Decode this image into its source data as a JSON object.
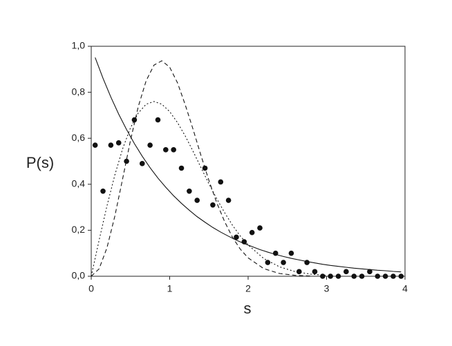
{
  "chart_data": {
    "type": "scatter",
    "x_label": "s",
    "y_label": "P(s)",
    "xlim": [
      0,
      4
    ],
    "ylim": [
      0,
      1
    ],
    "xticks": [
      0,
      1,
      2,
      3,
      4
    ],
    "yticks": [
      {
        "value": 0,
        "label": "0,0"
      },
      {
        "value": 0.2,
        "label": "0,2"
      },
      {
        "value": 0.4,
        "label": "0,4"
      },
      {
        "value": 0.6,
        "label": "0,6"
      },
      {
        "value": 0.8,
        "label": "0,8"
      },
      {
        "value": 1,
        "label": "1,0"
      }
    ],
    "series": [
      {
        "style": "dots",
        "color": "#111111",
        "x": [
          0.05,
          0.15,
          0.25,
          0.35,
          0.45,
          0.55,
          0.65,
          0.75,
          0.85,
          0.95,
          1.05,
          1.15,
          1.25,
          1.35,
          1.45,
          1.55,
          1.65,
          1.75,
          1.85,
          1.95,
          2.05,
          2.15,
          2.25,
          2.35,
          2.45,
          2.55,
          2.65,
          2.75,
          2.85,
          2.95,
          3.05,
          3.15,
          3.25,
          3.35,
          3.45,
          3.55,
          3.65,
          3.75,
          3.85,
          3.95
        ],
        "values": [
          0.57,
          0.37,
          0.57,
          0.58,
          0.5,
          0.68,
          0.49,
          0.57,
          0.68,
          0.55,
          0.55,
          0.47,
          0.37,
          0.33,
          0.47,
          0.31,
          0.41,
          0.33,
          0.17,
          0.15,
          0.19,
          0.21,
          0.06,
          0.1,
          0.06,
          0.1,
          0.02,
          0.06,
          0.02,
          0,
          0,
          0,
          0.02,
          0,
          0,
          0.02,
          0,
          0,
          0,
          0
        ]
      },
      {
        "style": "solid",
        "color": "#111111",
        "x": [
          0.05,
          0.15,
          0.25,
          0.35,
          0.45,
          0.55,
          0.65,
          0.75,
          0.85,
          0.95,
          1.05,
          1.15,
          1.25,
          1.35,
          1.45,
          1.55,
          1.65,
          1.75,
          1.85,
          1.95,
          2.05,
          2.15,
          2.25,
          2.35,
          2.45,
          2.55,
          2.65,
          2.75,
          2.85,
          2.95,
          3.05,
          3.15,
          3.25,
          3.35,
          3.45,
          3.55,
          3.65,
          3.75,
          3.85,
          3.95
        ],
        "values": [
          0.951,
          0.861,
          0.779,
          0.705,
          0.638,
          0.577,
          0.522,
          0.472,
          0.427,
          0.387,
          0.35,
          0.317,
          0.287,
          0.259,
          0.235,
          0.212,
          0.192,
          0.174,
          0.157,
          0.142,
          0.129,
          0.116,
          0.105,
          0.095,
          0.086,
          0.078,
          0.071,
          0.064,
          0.058,
          0.052,
          0.047,
          0.043,
          0.039,
          0.035,
          0.032,
          0.029,
          0.026,
          0.024,
          0.021,
          0.019
        ]
      },
      {
        "style": "dashed",
        "color": "#111111",
        "x": [
          0,
          0.1,
          0.2,
          0.3,
          0.4,
          0.5,
          0.6,
          0.7,
          0.8,
          0.9,
          1.0,
          1.1,
          1.2,
          1.3,
          1.4,
          1.5,
          1.6,
          1.7,
          1.8,
          1.9,
          2.0,
          2.2,
          2.4,
          2.6,
          2.8
        ],
        "values": [
          0,
          0.032,
          0.123,
          0.26,
          0.423,
          0.59,
          0.738,
          0.85,
          0.918,
          0.937,
          0.909,
          0.841,
          0.744,
          0.637,
          0.524,
          0.417,
          0.32,
          0.238,
          0.17,
          0.118,
          0.08,
          0.033,
          0.012,
          0.004,
          0.001
        ]
      },
      {
        "style": "dotted",
        "color": "#111111",
        "x": [
          0,
          0.1,
          0.2,
          0.3,
          0.4,
          0.5,
          0.6,
          0.7,
          0.8,
          0.9,
          1.0,
          1.1,
          1.2,
          1.3,
          1.4,
          1.5,
          1.6,
          1.7,
          1.8,
          1.9,
          2.0,
          2.2,
          2.4,
          2.6,
          2.8,
          3.0
        ],
        "values": [
          0,
          0.156,
          0.305,
          0.439,
          0.554,
          0.645,
          0.71,
          0.748,
          0.76,
          0.748,
          0.716,
          0.668,
          0.609,
          0.542,
          0.472,
          0.402,
          0.337,
          0.277,
          0.222,
          0.175,
          0.136,
          0.077,
          0.041,
          0.02,
          0.009,
          0.004
        ]
      }
    ]
  }
}
